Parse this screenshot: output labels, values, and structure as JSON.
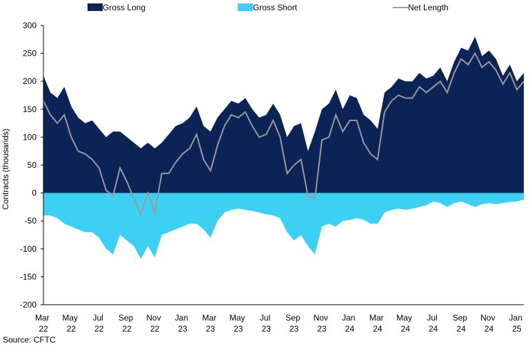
{
  "chart_data": {
    "type": "area",
    "y_axis_label": "Contracts (thousands)",
    "source": "Source: CFTC",
    "categories": [
      "Mar 22",
      null,
      null,
      null,
      "May 22",
      null,
      null,
      null,
      "Jul 22",
      null,
      null,
      null,
      "Sep 22",
      null,
      null,
      null,
      "Nov 22",
      null,
      null,
      null,
      "Jan 23",
      null,
      null,
      null,
      "Mar 23",
      null,
      null,
      null,
      "May 23",
      null,
      null,
      null,
      "Jul 23",
      null,
      null,
      null,
      "Sep 23",
      null,
      null,
      null,
      "Nov 23",
      null,
      null,
      null,
      "Jan 24",
      null,
      null,
      null,
      "Mar 24",
      null,
      null,
      null,
      "May 24",
      null,
      null,
      null,
      "Jul 24",
      null,
      null,
      null,
      "Sep 24",
      null,
      null,
      null,
      "Nov 24",
      null,
      null,
      null,
      "Jan 25",
      null
    ],
    "series": [
      {
        "name": "Gross Long",
        "color": "#0c2357",
        "style": "area",
        "values": [
          210,
          180,
          170,
          190,
          155,
          135,
          125,
          130,
          115,
          100,
          110,
          110,
          100,
          90,
          80,
          90,
          80,
          90,
          105,
          120,
          125,
          135,
          155,
          120,
          110,
          135,
          150,
          165,
          160,
          170,
          150,
          135,
          140,
          160,
          140,
          100,
          120,
          125,
          75,
          110,
          150,
          160,
          185,
          150,
          175,
          170,
          140,
          130,
          115,
          180,
          190,
          205,
          200,
          200,
          215,
          205,
          210,
          225,
          200,
          235,
          260,
          255,
          280,
          245,
          255,
          240,
          210,
          230,
          200,
          215
        ]
      },
      {
        "name": "Gross Short",
        "color": "#3dd0f5",
        "style": "area",
        "values": [
          -40,
          -40,
          -45,
          -55,
          -60,
          -65,
          -70,
          -70,
          -80,
          -100,
          -110,
          -75,
          -85,
          -95,
          -118,
          -95,
          -115,
          -75,
          -70,
          -65,
          -60,
          -55,
          -55,
          -65,
          -80,
          -50,
          -35,
          -30,
          -28,
          -30,
          -32,
          -35,
          -38,
          -40,
          -45,
          -70,
          -85,
          -75,
          -95,
          -110,
          -60,
          -55,
          -60,
          -50,
          -48,
          -45,
          -48,
          -55,
          -55,
          -35,
          -30,
          -28,
          -30,
          -28,
          -25,
          -22,
          -15,
          -18,
          -25,
          -18,
          -15,
          -20,
          -25,
          -20,
          -18,
          -20,
          -18,
          -16,
          -15,
          -12
        ]
      },
      {
        "name": "Net Length",
        "color": "#9a9a9a",
        "style": "line",
        "values": [
          165,
          140,
          125,
          140,
          100,
          75,
          70,
          60,
          45,
          5,
          -5,
          45,
          20,
          -10,
          -38,
          0,
          -35,
          35,
          35,
          55,
          70,
          80,
          105,
          60,
          40,
          85,
          120,
          140,
          135,
          145,
          120,
          100,
          105,
          130,
          100,
          35,
          50,
          60,
          -5,
          -10,
          95,
          100,
          140,
          110,
          130,
          130,
          90,
          70,
          60,
          145,
          165,
          175,
          170,
          170,
          190,
          180,
          190,
          200,
          180,
          215,
          240,
          230,
          250,
          225,
          235,
          220,
          195,
          215,
          185,
          200
        ]
      }
    ],
    "ylim": [
      -200,
      300
    ],
    "yticks": [
      -200,
      -150,
      -100,
      -50,
      0,
      50,
      100,
      150,
      200,
      250,
      300
    ]
  }
}
